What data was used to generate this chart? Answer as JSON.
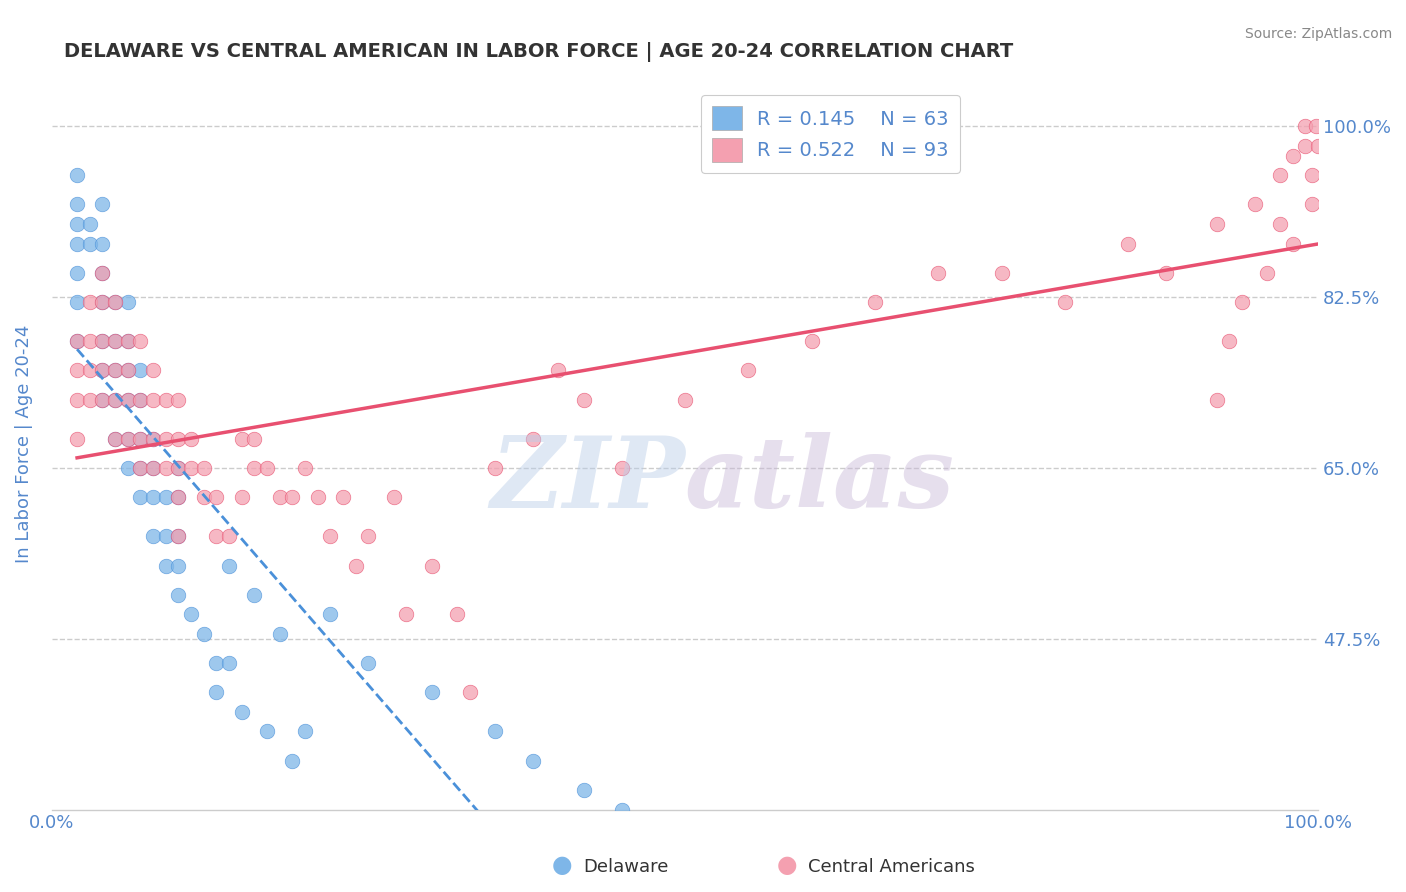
{
  "title": "DELAWARE VS CENTRAL AMERICAN IN LABOR FORCE | AGE 20-24 CORRELATION CHART",
  "source_text": "Source: ZipAtlas.com",
  "ylabel": "In Labor Force | Age 20-24",
  "xlim": [
    0.0,
    1.0
  ],
  "ylim": [
    0.3,
    1.05
  ],
  "yticks": [
    0.475,
    0.65,
    0.825,
    1.0
  ],
  "ytick_labels": [
    "47.5%",
    "65.0%",
    "82.5%",
    "100.0%"
  ],
  "legend_r1": "R = 0.145",
  "legend_n1": "N = 63",
  "legend_r2": "R = 0.522",
  "legend_n2": "N = 93",
  "delaware_color": "#7eb6e8",
  "central_color": "#f4a0b0",
  "delaware_line_color": "#4a90d9",
  "central_line_color": "#e85070",
  "background_color": "#ffffff",
  "grid_color": "#cccccc",
  "title_color": "#333333",
  "tick_label_color": "#5588cc",
  "delaware_x": [
    0.02,
    0.02,
    0.02,
    0.02,
    0.02,
    0.02,
    0.02,
    0.03,
    0.03,
    0.04,
    0.04,
    0.04,
    0.04,
    0.04,
    0.04,
    0.04,
    0.05,
    0.05,
    0.05,
    0.05,
    0.05,
    0.06,
    0.06,
    0.06,
    0.06,
    0.06,
    0.06,
    0.07,
    0.07,
    0.07,
    0.07,
    0.07,
    0.08,
    0.08,
    0.08,
    0.08,
    0.09,
    0.09,
    0.09,
    0.1,
    0.1,
    0.1,
    0.1,
    0.1,
    0.11,
    0.12,
    0.13,
    0.13,
    0.14,
    0.14,
    0.15,
    0.16,
    0.17,
    0.18,
    0.19,
    0.2,
    0.22,
    0.25,
    0.3,
    0.35,
    0.38,
    0.42,
    0.45
  ],
  "delaware_y": [
    0.78,
    0.82,
    0.85,
    0.88,
    0.9,
    0.92,
    0.95,
    0.88,
    0.9,
    0.72,
    0.75,
    0.78,
    0.82,
    0.85,
    0.88,
    0.92,
    0.68,
    0.72,
    0.75,
    0.78,
    0.82,
    0.65,
    0.68,
    0.72,
    0.75,
    0.78,
    0.82,
    0.62,
    0.65,
    0.68,
    0.72,
    0.75,
    0.58,
    0.62,
    0.65,
    0.68,
    0.55,
    0.58,
    0.62,
    0.52,
    0.55,
    0.58,
    0.62,
    0.65,
    0.5,
    0.48,
    0.45,
    0.42,
    0.55,
    0.45,
    0.4,
    0.52,
    0.38,
    0.48,
    0.35,
    0.38,
    0.5,
    0.45,
    0.42,
    0.38,
    0.35,
    0.32,
    0.3
  ],
  "central_x": [
    0.02,
    0.02,
    0.02,
    0.02,
    0.03,
    0.03,
    0.03,
    0.03,
    0.04,
    0.04,
    0.04,
    0.04,
    0.04,
    0.05,
    0.05,
    0.05,
    0.05,
    0.05,
    0.06,
    0.06,
    0.06,
    0.06,
    0.07,
    0.07,
    0.07,
    0.07,
    0.08,
    0.08,
    0.08,
    0.08,
    0.09,
    0.09,
    0.09,
    0.1,
    0.1,
    0.1,
    0.1,
    0.1,
    0.11,
    0.11,
    0.12,
    0.12,
    0.13,
    0.13,
    0.14,
    0.15,
    0.15,
    0.16,
    0.16,
    0.17,
    0.18,
    0.19,
    0.2,
    0.21,
    0.22,
    0.23,
    0.24,
    0.25,
    0.27,
    0.28,
    0.3,
    0.32,
    0.33,
    0.35,
    0.38,
    0.4,
    0.42,
    0.45,
    0.5,
    0.55,
    0.6,
    0.65,
    0.7,
    0.75,
    0.8,
    0.85,
    0.88,
    0.92,
    0.95,
    0.97,
    0.98,
    0.99,
    0.99,
    0.995,
    0.995,
    0.998,
    1.0,
    0.98,
    0.97,
    0.96,
    0.94,
    0.93,
    0.92
  ],
  "central_y": [
    0.78,
    0.75,
    0.72,
    0.68,
    0.82,
    0.78,
    0.75,
    0.72,
    0.85,
    0.82,
    0.78,
    0.75,
    0.72,
    0.82,
    0.78,
    0.75,
    0.72,
    0.68,
    0.78,
    0.75,
    0.72,
    0.68,
    0.78,
    0.72,
    0.68,
    0.65,
    0.75,
    0.72,
    0.68,
    0.65,
    0.72,
    0.68,
    0.65,
    0.72,
    0.68,
    0.65,
    0.62,
    0.58,
    0.68,
    0.65,
    0.65,
    0.62,
    0.62,
    0.58,
    0.58,
    0.68,
    0.62,
    0.68,
    0.65,
    0.65,
    0.62,
    0.62,
    0.65,
    0.62,
    0.58,
    0.62,
    0.55,
    0.58,
    0.62,
    0.5,
    0.55,
    0.5,
    0.42,
    0.65,
    0.68,
    0.75,
    0.72,
    0.65,
    0.72,
    0.75,
    0.78,
    0.82,
    0.85,
    0.85,
    0.82,
    0.88,
    0.85,
    0.9,
    0.92,
    0.95,
    0.97,
    0.98,
    1.0,
    0.92,
    0.95,
    1.0,
    0.98,
    0.88,
    0.9,
    0.85,
    0.82,
    0.78,
    0.72
  ]
}
